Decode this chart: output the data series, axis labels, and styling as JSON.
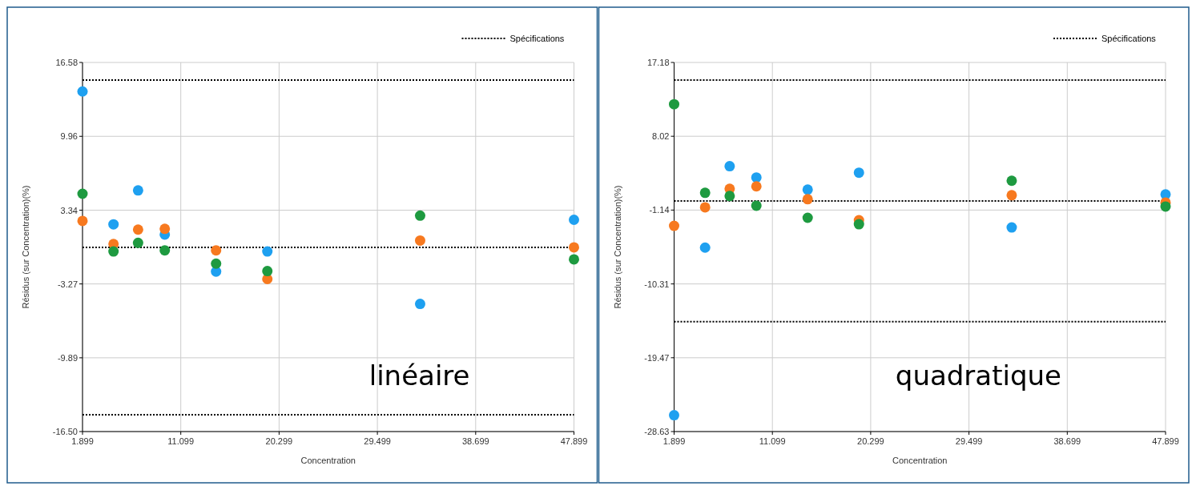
{
  "chart_data": [
    {
      "type": "scatter",
      "xlabel": "Concentration",
      "ylabel": "Résidus (sur Concentration)(%)",
      "annotations": [
        "linéaire"
      ],
      "marker": "circle",
      "grid": true,
      "legend": "top right",
      "xlim": [
        1.899,
        47.899
      ],
      "xticks": [
        1.899,
        11.099,
        20.299,
        29.499,
        38.699,
        47.899
      ],
      "ylim": [
        -16.5,
        16.58
      ],
      "yticks": [
        {
          "value": -16.5,
          "label": "-16.50"
        },
        -9.89,
        -3.27,
        3.34,
        9.96,
        16.58
      ],
      "x": [
        1.899,
        4.8,
        7.1,
        9.6,
        14.4,
        19.2,
        33.5,
        47.899
      ],
      "series": [
        {
          "color": "#1ea0f0",
          "values": [
            13.98,
            2.07,
            5.11,
            1.16,
            -2.16,
            -0.36,
            -5.06,
            2.48
          ]
        },
        {
          "color": "#f7791f",
          "values": [
            2.38,
            0.31,
            1.6,
            1.67,
            -0.26,
            -2.83,
            0.62,
            0.01
          ]
        },
        {
          "color": "#1e9a40",
          "values": [
            4.81,
            -0.36,
            0.41,
            -0.26,
            -1.45,
            -2.12,
            2.85,
            -1.07
          ]
        }
      ],
      "ref_lines": [
        {
          "axis": "y",
          "value": 15,
          "label": "Spécifications",
          "color": "#000000",
          "line_style": "dotted"
        },
        {
          "axis": "y",
          "value": 0,
          "color": "#000000",
          "line_style": "dotted"
        },
        {
          "axis": "y",
          "value": -15,
          "color": "#000000",
          "line_style": "dotted"
        }
      ]
    },
    {
      "type": "scatter",
      "xlabel": "Concentration",
      "ylabel": "Résidus (sur Concentration)(%)",
      "annotations": [
        "quadratique"
      ],
      "marker": "circle",
      "grid": true,
      "legend": "top right",
      "xlim": [
        1.899,
        47.899
      ],
      "xticks": [
        1.899,
        11.099,
        20.299,
        29.499,
        38.699,
        47.899
      ],
      "ylim": [
        -28.63,
        17.18
      ],
      "yticks": [
        -28.63,
        -19.47,
        -10.31,
        -1.14,
        8.02,
        17.18
      ],
      "x": [
        1.899,
        4.8,
        7.1,
        9.6,
        14.4,
        19.2,
        33.5,
        47.899
      ],
      "series": [
        {
          "color": "#1ea0f0",
          "values": [
            -26.6,
            -5.8,
            4.3,
            2.9,
            1.4,
            3.5,
            -3.3,
            0.8
          ]
        },
        {
          "color": "#f7791f",
          "values": [
            -3.1,
            -0.8,
            1.5,
            1.8,
            0.2,
            -2.4,
            0.7,
            -0.2
          ]
        },
        {
          "color": "#1e9a40",
          "values": [
            12.0,
            1.0,
            0.6,
            -0.6,
            -2.1,
            -2.9,
            2.5,
            -0.7
          ]
        }
      ],
      "ref_lines": [
        {
          "axis": "y",
          "value": 15,
          "label": "Spécifications",
          "color": "#000000",
          "line_style": "dotted"
        },
        {
          "axis": "y",
          "value": 0,
          "color": "#000000",
          "line_style": "dotted"
        },
        {
          "axis": "y",
          "value": -15,
          "color": "#000000",
          "line_style": "dotted"
        }
      ]
    }
  ]
}
